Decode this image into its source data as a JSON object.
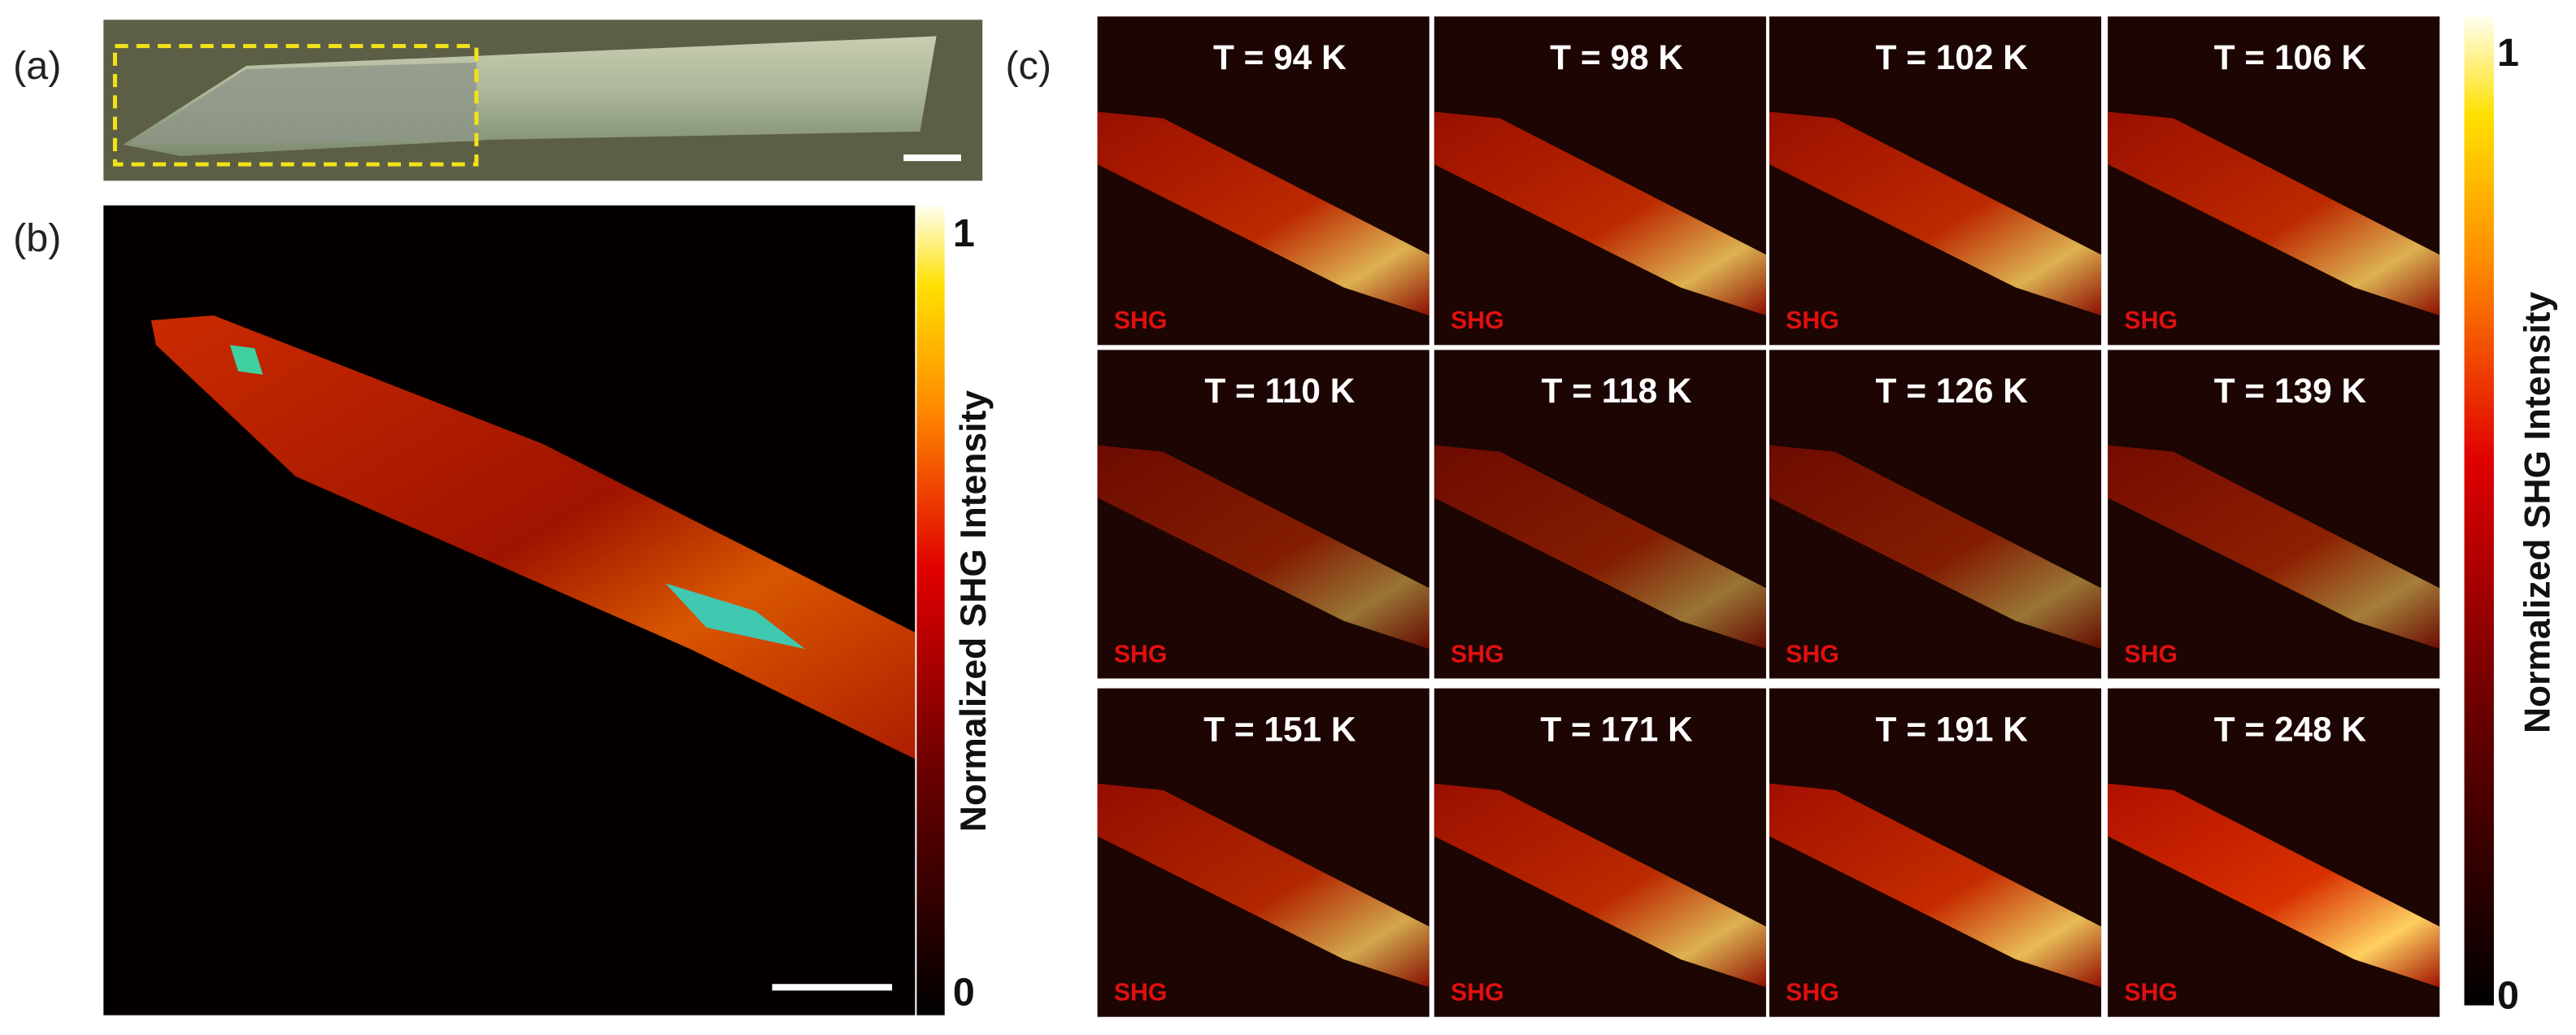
{
  "panel_a": {
    "label": "(a)"
  },
  "panel_b": {
    "label": "(b)",
    "colorbar": {
      "label": "Normalized SHG Intensity",
      "max": 1,
      "min": 0
    }
  },
  "panel_c": {
    "label": "(c)",
    "tiles": [
      {
        "title": "T = 94 K",
        "tag": "SHG"
      },
      {
        "title": "T = 98 K",
        "tag": "SHG"
      },
      {
        "title": "T = 102 K",
        "tag": "SHG"
      },
      {
        "title": "T = 106 K",
        "tag": "SHG"
      },
      {
        "title": "T = 110 K",
        "tag": "SHG"
      },
      {
        "title": "T = 118 K",
        "tag": "SHG"
      },
      {
        "title": "T = 126 K",
        "tag": "SHG"
      },
      {
        "title": "T = 139 K",
        "tag": "SHG"
      },
      {
        "title": "T = 151 K",
        "tag": "SHG"
      },
      {
        "title": "T = 171 K",
        "tag": "SHG"
      },
      {
        "title": "T = 191 K",
        "tag": "SHG"
      },
      {
        "title": "T = 248 K",
        "tag": "SHG"
      }
    ],
    "colorbar": {
      "label": "Normalized SHG Intensity",
      "max": 1,
      "min": 0
    }
  }
}
